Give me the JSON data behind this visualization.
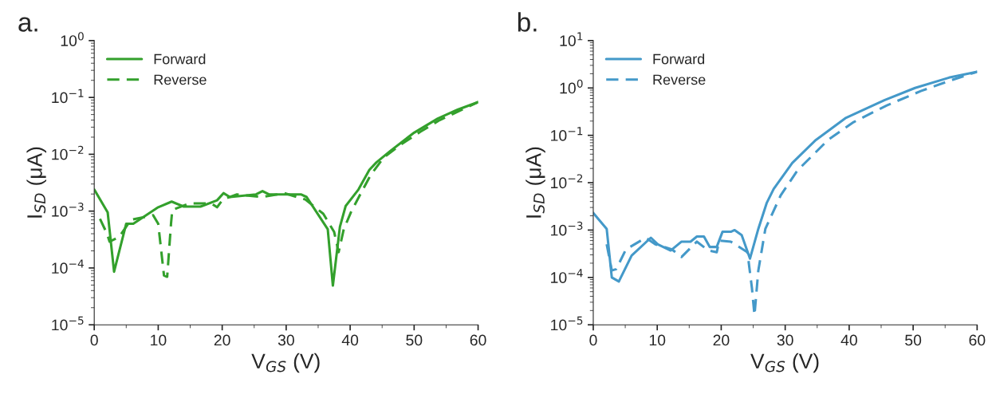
{
  "chart_data": [
    {
      "type": "line",
      "xlabel": "V$_{GS}$ (V)",
      "ylabel": "I$_{SD}$ (μA)",
      "annotations": [
        "a."
      ],
      "log": "y",
      "xlim": [
        0,
        60
      ],
      "xticks": [
        0,
        10,
        20,
        30,
        40,
        50,
        60
      ],
      "ylim": [
        1e-05,
        1
      ],
      "yticks": [
        {
          "value": 1e-05,
          "label": "10$^{−5}$"
        },
        {
          "value": 0.0001,
          "label": "10$^{−4}$"
        },
        {
          "value": 0.001,
          "label": "10$^{−3}$"
        },
        {
          "value": 0.01,
          "label": "10$^{−2}$"
        },
        {
          "value": 0.1,
          "label": "10$^{−1}$"
        },
        {
          "value": 1,
          "label": "10$^{0}$"
        }
      ],
      "grid": false,
      "legend": "top left",
      "series": [
        {
          "name": "Forward",
          "color": "#33a02c",
          "line_style": "solid",
          "x": [
            0,
            2.1,
            3.1,
            5.0,
            6.1,
            7,
            10,
            12.1,
            14,
            16.6,
            19.2,
            20.2,
            21.2,
            25.3,
            26.3,
            27.3,
            32.3,
            33.2,
            36.5,
            37.3,
            38.4,
            39.3,
            41.3,
            43,
            44.1,
            46.3,
            50,
            53.7,
            56.8,
            60
          ],
          "values": [
            0.0024,
            0.00095,
            8.6e-05,
            0.0006,
            0.0006,
            0.0007,
            0.00117,
            0.00147,
            0.0012,
            0.0012,
            0.00155,
            0.00207,
            0.00177,
            0.00197,
            0.00225,
            0.00197,
            0.00197,
            0.00177,
            0.00048,
            4.9e-05,
            0.00053,
            0.00123,
            0.0024,
            0.0053,
            0.0072,
            0.0115,
            0.024,
            0.0425,
            0.061,
            0.083
          ]
        },
        {
          "name": "Reverse",
          "color": "#33a02c",
          "line_style": "dashed",
          "x": [
            0.9,
            2,
            2.4,
            3.9,
            5.7,
            9.2,
            10,
            10.9,
            11.4,
            12,
            12.2,
            14.9,
            18.3,
            19.2,
            20.1,
            22.3,
            26.2,
            29.7,
            33,
            35.8,
            37.5,
            38.2,
            39,
            40.2,
            41.9,
            43.2,
            45.3,
            48,
            51,
            54,
            57.5,
            60
          ],
          "values": [
            0.00073,
            0.0004,
            0.00029,
            0.00035,
            0.0007,
            0.00085,
            0.0006,
            7.4e-05,
            7e-05,
            0.0006,
            0.00105,
            0.00137,
            0.00137,
            0.00117,
            0.0016,
            0.00197,
            0.00177,
            0.00207,
            0.0016,
            0.0009,
            0.00043,
            0.00019,
            0.00048,
            0.001,
            0.0023,
            0.0043,
            0.0089,
            0.015,
            0.025,
            0.04,
            0.061,
            0.083
          ]
        }
      ]
    },
    {
      "type": "line",
      "xlabel": "V$_{GS}$ (V)",
      "ylabel": "I$_{SD}$ (μA)",
      "annotations": [
        "b."
      ],
      "log": "y",
      "xlim": [
        0,
        60
      ],
      "xticks": [
        0,
        10,
        20,
        30,
        40,
        50,
        60
      ],
      "ylim": [
        1e-05,
        10
      ],
      "yticks": [
        {
          "value": 1e-05,
          "label": "10$^{−5}$"
        },
        {
          "value": 0.0001,
          "label": "10$^{−4}$"
        },
        {
          "value": 0.001,
          "label": "10$^{−3}$"
        },
        {
          "value": 0.01,
          "label": "10$^{−2}$"
        },
        {
          "value": 0.1,
          "label": "10$^{−1}$"
        },
        {
          "value": 1,
          "label": "10$^{0}$"
        },
        {
          "value": 10,
          "label": "10$^{1}$"
        }
      ],
      "grid": false,
      "legend": "top left",
      "series": [
        {
          "name": "Forward",
          "color": "#4499c9",
          "line_style": "solid",
          "x": [
            0,
            2.1,
            2.9,
            4,
            6,
            9,
            10.1,
            12.1,
            13.8,
            15.2,
            16.2,
            17.3,
            18.2,
            19.3,
            20.2,
            21.5,
            22.1,
            23.2,
            24.5,
            25.8,
            27.1,
            28.2,
            31.1,
            34.8,
            39.4,
            45.5,
            50.3,
            55.6,
            60
          ],
          "values": [
            0.0023,
            0.00106,
            0.0001,
            8.2e-05,
            0.00029,
            0.00069,
            0.0005,
            0.00037,
            0.00057,
            0.00057,
            0.00073,
            0.00073,
            0.00044,
            0.00044,
            0.00092,
            0.00092,
            0.001,
            0.00078,
            0.00025,
            0.00106,
            0.0037,
            0.0074,
            0.026,
            0.08,
            0.23,
            0.55,
            1.0,
            1.65,
            2.2
          ]
        },
        {
          "name": "Reverse",
          "color": "#4499c9",
          "line_style": "dashed",
          "x": [
            2.1,
            2.9,
            3.6,
            5.1,
            8.2,
            9.7,
            12.3,
            13.8,
            16.2,
            18,
            19.3,
            19.7,
            21.5,
            24.1,
            24.8,
            25.2,
            25.8,
            26.9,
            29.3,
            31.9,
            36.7,
            40.7,
            45.9,
            51.2,
            55.6,
            60
          ],
          "values": [
            0.0005,
            0.00014,
            0.00015,
            0.00039,
            0.00069,
            0.0005,
            0.00039,
            0.00027,
            0.00057,
            0.00037,
            0.00034,
            0.0006,
            0.00057,
            0.00034,
            6e-05,
            1.6e-05,
            0.00014,
            0.00106,
            0.0054,
            0.018,
            0.08,
            0.19,
            0.43,
            0.86,
            1.4,
            2.2
          ]
        }
      ]
    }
  ]
}
